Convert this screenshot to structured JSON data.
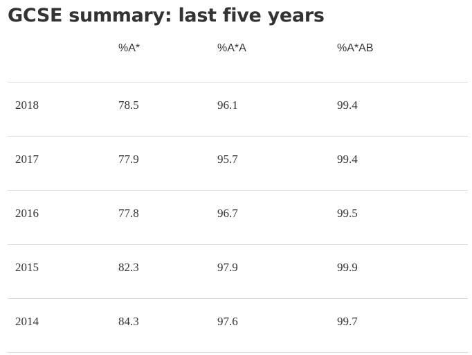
{
  "title": "GCSE summary: last five years",
  "table": {
    "headers": [
      "",
      "%A*",
      "%A*A",
      "%A*AB"
    ],
    "rows": [
      {
        "year": "2018",
        "a_star": "78.5",
        "a_star_a": "96.1",
        "a_star_ab": "99.4"
      },
      {
        "year": "2017",
        "a_star": "77.9",
        "a_star_a": "95.7",
        "a_star_ab": "99.4"
      },
      {
        "year": "2016",
        "a_star": "77.8",
        "a_star_a": "96.7",
        "a_star_ab": "99.5"
      },
      {
        "year": "2015",
        "a_star": "82.3",
        "a_star_a": "97.9",
        "a_star_ab": "99.9"
      },
      {
        "year": "2014",
        "a_star": "84.3",
        "a_star_a": "97.6",
        "a_star_ab": "99.7"
      }
    ]
  }
}
